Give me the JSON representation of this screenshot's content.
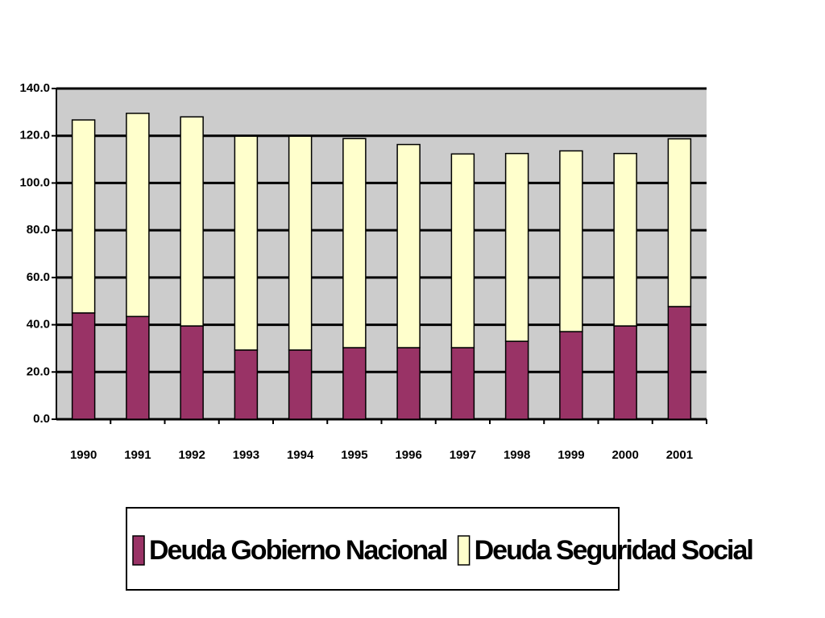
{
  "chart_data": {
    "type": "stacked-bar",
    "categories": [
      "1990",
      "1991",
      "1992",
      "1993",
      "1994",
      "1995",
      "1996",
      "1997",
      "1998",
      "1999",
      "2000",
      "2001"
    ],
    "series": [
      {
        "name": "Deuda Gobierno Nacional",
        "color": "#993366",
        "values": [
          45.0,
          43.5,
          39.5,
          29.3,
          29.3,
          30.3,
          30.3,
          30.3,
          33.0,
          37.1,
          39.5,
          47.7
        ]
      },
      {
        "name": "Deuda Seguridad Social",
        "color": "#ffffcc",
        "values": [
          81.7,
          86.0,
          88.5,
          90.5,
          90.5,
          88.5,
          86.0,
          82.0,
          79.5,
          76.5,
          73.0,
          71.0
        ]
      }
    ],
    "ylim": [
      0,
      140
    ],
    "yticks": [
      {
        "value": 0,
        "label": "0.0"
      },
      {
        "value": 20,
        "label": "20.0"
      },
      {
        "value": 40,
        "label": "40.0"
      },
      {
        "value": 60,
        "label": "60.0"
      },
      {
        "value": 80,
        "label": "80.0"
      },
      {
        "value": 100,
        "label": "100.0"
      },
      {
        "value": 120,
        "label": "120.0"
      },
      {
        "value": 140,
        "label": "140.0"
      }
    ],
    "grid": true,
    "legend": "bottom"
  }
}
